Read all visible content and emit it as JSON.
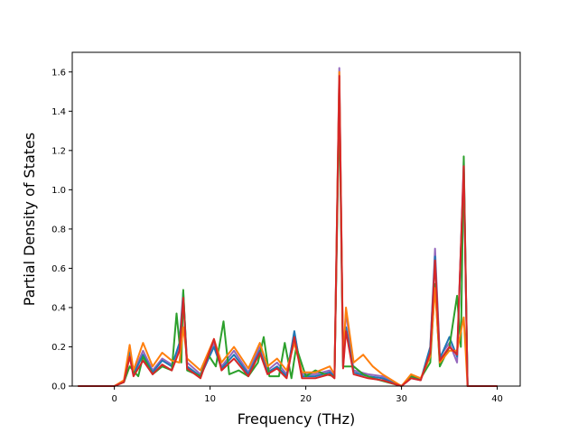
{
  "chart_data": {
    "type": "line",
    "title": "",
    "xlabel": "Frequency (THz)",
    "ylabel": "Partial Density of States",
    "xlim": [
      -4.4,
      42.4
    ],
    "ylim": [
      0,
      1.7
    ],
    "xticks": [
      0,
      10,
      20,
      30,
      40
    ],
    "yticks": [
      0.0,
      0.2,
      0.4,
      0.6,
      0.8,
      1.0,
      1.2,
      1.4,
      1.6
    ],
    "xtick_labels": [
      "0",
      "10",
      "20",
      "30",
      "40"
    ],
    "ytick_labels": [
      "0.0",
      "0.2",
      "0.4",
      "0.6",
      "0.8",
      "1.0",
      "1.2",
      "1.4",
      "1.6"
    ],
    "grid": false,
    "legend": "none",
    "series": [
      {
        "color": "#9467bd",
        "points": [
          [
            -3.8,
            0
          ],
          [
            0,
            0
          ],
          [
            1.0,
            0.02
          ],
          [
            1.6,
            0.19
          ],
          [
            2.0,
            0.07
          ],
          [
            3.0,
            0.18
          ],
          [
            4.0,
            0.08
          ],
          [
            5.0,
            0.14
          ],
          [
            6.0,
            0.11
          ],
          [
            6.8,
            0.2
          ],
          [
            7.2,
            0.46
          ],
          [
            7.6,
            0.12
          ],
          [
            9.0,
            0.06
          ],
          [
            10.4,
            0.22
          ],
          [
            11.2,
            0.1
          ],
          [
            12.5,
            0.18
          ],
          [
            14.0,
            0.07
          ],
          [
            15.2,
            0.2
          ],
          [
            16.0,
            0.08
          ],
          [
            17.0,
            0.12
          ],
          [
            18.0,
            0.06
          ],
          [
            18.8,
            0.27
          ],
          [
            19.6,
            0.06
          ],
          [
            21.0,
            0.06
          ],
          [
            22.5,
            0.08
          ],
          [
            23.0,
            0.05
          ],
          [
            23.5,
            1.62
          ],
          [
            23.9,
            0.12
          ],
          [
            24.2,
            0.38
          ],
          [
            25.0,
            0.08
          ],
          [
            26.5,
            0.06
          ],
          [
            28.0,
            0.05
          ],
          [
            30.0,
            0.0
          ],
          [
            31.0,
            0.04
          ],
          [
            32.0,
            0.03
          ],
          [
            33.0,
            0.18
          ],
          [
            33.5,
            0.7
          ],
          [
            34.0,
            0.15
          ],
          [
            35.0,
            0.22
          ],
          [
            35.8,
            0.12
          ],
          [
            36.5,
            1.15
          ],
          [
            36.9,
            0.0
          ],
          [
            40.0,
            0
          ]
        ]
      },
      {
        "color": "#1f77b4",
        "points": [
          [
            -3.8,
            0
          ],
          [
            0,
            0
          ],
          [
            1.0,
            0.02
          ],
          [
            1.6,
            0.17
          ],
          [
            2.0,
            0.06
          ],
          [
            3.0,
            0.16
          ],
          [
            4.0,
            0.07
          ],
          [
            5.0,
            0.13
          ],
          [
            6.0,
            0.1
          ],
          [
            6.8,
            0.22
          ],
          [
            7.2,
            0.48
          ],
          [
            7.6,
            0.1
          ],
          [
            9.0,
            0.05
          ],
          [
            10.4,
            0.2
          ],
          [
            11.2,
            0.09
          ],
          [
            12.5,
            0.16
          ],
          [
            14.0,
            0.06
          ],
          [
            15.2,
            0.18
          ],
          [
            16.0,
            0.07
          ],
          [
            17.0,
            0.1
          ],
          [
            18.0,
            0.05
          ],
          [
            18.8,
            0.28
          ],
          [
            19.6,
            0.05
          ],
          [
            21.0,
            0.05
          ],
          [
            22.5,
            0.07
          ],
          [
            23.0,
            0.05
          ],
          [
            23.5,
            1.55
          ],
          [
            23.9,
            0.1
          ],
          [
            24.2,
            0.3
          ],
          [
            25.0,
            0.07
          ],
          [
            26.5,
            0.05
          ],
          [
            28.0,
            0.04
          ],
          [
            30.0,
            0.0
          ],
          [
            31.0,
            0.05
          ],
          [
            32.0,
            0.03
          ],
          [
            33.0,
            0.2
          ],
          [
            33.5,
            0.66
          ],
          [
            34.0,
            0.14
          ],
          [
            35.0,
            0.25
          ],
          [
            35.8,
            0.15
          ],
          [
            36.5,
            1.1
          ],
          [
            36.9,
            0.0
          ],
          [
            40.0,
            0
          ]
        ]
      },
      {
        "color": "#2ca02c",
        "points": [
          [
            -3.8,
            0
          ],
          [
            0,
            0
          ],
          [
            1.0,
            0.02
          ],
          [
            1.6,
            0.1
          ],
          [
            2.5,
            0.05
          ],
          [
            3.0,
            0.15
          ],
          [
            4.0,
            0.06
          ],
          [
            5.0,
            0.1
          ],
          [
            6.0,
            0.08
          ],
          [
            6.5,
            0.37
          ],
          [
            7.0,
            0.12
          ],
          [
            7.2,
            0.49
          ],
          [
            7.6,
            0.08
          ],
          [
            9.0,
            0.05
          ],
          [
            9.8,
            0.16
          ],
          [
            10.6,
            0.1
          ],
          [
            11.4,
            0.33
          ],
          [
            12.0,
            0.06
          ],
          [
            13.0,
            0.08
          ],
          [
            14.0,
            0.05
          ],
          [
            15.0,
            0.12
          ],
          [
            15.6,
            0.25
          ],
          [
            16.2,
            0.05
          ],
          [
            17.2,
            0.05
          ],
          [
            17.8,
            0.22
          ],
          [
            18.5,
            0.04
          ],
          [
            19.0,
            0.2
          ],
          [
            20.0,
            0.05
          ],
          [
            21.0,
            0.08
          ],
          [
            22.0,
            0.06
          ],
          [
            23.0,
            0.05
          ],
          [
            23.5,
            1.45
          ],
          [
            23.9,
            0.1
          ],
          [
            25.0,
            0.1
          ],
          [
            26.0,
            0.06
          ],
          [
            27.0,
            0.04
          ],
          [
            30.0,
            0.0
          ],
          [
            31.0,
            0.05
          ],
          [
            32.0,
            0.04
          ],
          [
            33.0,
            0.12
          ],
          [
            33.5,
            0.52
          ],
          [
            34.0,
            0.1
          ],
          [
            35.0,
            0.2
          ],
          [
            35.8,
            0.46
          ],
          [
            36.2,
            0.2
          ],
          [
            36.5,
            1.17
          ],
          [
            36.9,
            0.0
          ],
          [
            40.0,
            0
          ]
        ]
      },
      {
        "color": "#ff7f0e",
        "points": [
          [
            -3.8,
            0
          ],
          [
            0,
            0
          ],
          [
            1.0,
            0.03
          ],
          [
            1.6,
            0.21
          ],
          [
            2.0,
            0.08
          ],
          [
            3.0,
            0.22
          ],
          [
            4.0,
            0.1
          ],
          [
            5.0,
            0.17
          ],
          [
            6.0,
            0.13
          ],
          [
            6.8,
            0.12
          ],
          [
            7.2,
            0.3
          ],
          [
            7.6,
            0.14
          ],
          [
            9.0,
            0.08
          ],
          [
            10.4,
            0.24
          ],
          [
            11.2,
            0.12
          ],
          [
            12.5,
            0.2
          ],
          [
            14.0,
            0.09
          ],
          [
            15.2,
            0.22
          ],
          [
            16.0,
            0.1
          ],
          [
            17.0,
            0.14
          ],
          [
            18.0,
            0.08
          ],
          [
            18.8,
            0.22
          ],
          [
            19.6,
            0.07
          ],
          [
            21.0,
            0.07
          ],
          [
            22.5,
            0.1
          ],
          [
            23.0,
            0.06
          ],
          [
            23.5,
            1.6
          ],
          [
            23.9,
            0.14
          ],
          [
            24.2,
            0.4
          ],
          [
            25.0,
            0.12
          ],
          [
            26.0,
            0.16
          ],
          [
            27.0,
            0.1
          ],
          [
            28.0,
            0.06
          ],
          [
            30.0,
            0.0
          ],
          [
            31.0,
            0.06
          ],
          [
            32.0,
            0.04
          ],
          [
            33.0,
            0.15
          ],
          [
            33.5,
            0.5
          ],
          [
            34.0,
            0.12
          ],
          [
            35.0,
            0.18
          ],
          [
            35.8,
            0.18
          ],
          [
            36.5,
            0.35
          ],
          [
            36.9,
            0.0
          ],
          [
            40.0,
            0
          ]
        ]
      },
      {
        "color": "#d62728",
        "points": [
          [
            -3.8,
            0
          ],
          [
            0,
            0
          ],
          [
            1.0,
            0.02
          ],
          [
            1.6,
            0.15
          ],
          [
            2.0,
            0.05
          ],
          [
            3.0,
            0.13
          ],
          [
            4.0,
            0.06
          ],
          [
            5.0,
            0.11
          ],
          [
            6.0,
            0.08
          ],
          [
            6.8,
            0.18
          ],
          [
            7.2,
            0.45
          ],
          [
            7.6,
            0.09
          ],
          [
            9.0,
            0.04
          ],
          [
            10.4,
            0.24
          ],
          [
            11.2,
            0.08
          ],
          [
            12.5,
            0.14
          ],
          [
            14.0,
            0.05
          ],
          [
            15.2,
            0.17
          ],
          [
            16.0,
            0.06
          ],
          [
            17.0,
            0.09
          ],
          [
            18.0,
            0.04
          ],
          [
            18.8,
            0.25
          ],
          [
            19.6,
            0.04
          ],
          [
            21.0,
            0.04
          ],
          [
            22.5,
            0.06
          ],
          [
            23.0,
            0.04
          ],
          [
            23.5,
            1.58
          ],
          [
            23.9,
            0.09
          ],
          [
            24.2,
            0.28
          ],
          [
            25.0,
            0.06
          ],
          [
            26.5,
            0.04
          ],
          [
            28.0,
            0.03
          ],
          [
            30.0,
            0.0
          ],
          [
            31.0,
            0.04
          ],
          [
            32.0,
            0.03
          ],
          [
            33.0,
            0.17
          ],
          [
            33.5,
            0.64
          ],
          [
            34.0,
            0.13
          ],
          [
            35.0,
            0.2
          ],
          [
            35.8,
            0.16
          ],
          [
            36.5,
            1.12
          ],
          [
            36.9,
            0.0
          ],
          [
            40.0,
            0
          ]
        ]
      }
    ]
  }
}
